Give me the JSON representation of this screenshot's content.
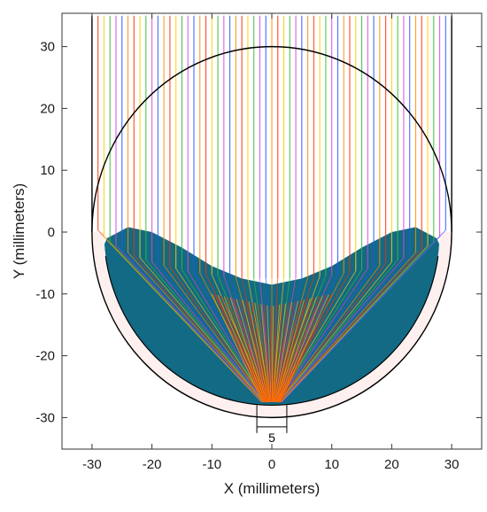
{
  "chart_data": {
    "type": "diagram",
    "xlabel": "X (millimeters)",
    "ylabel": "Y (millimeters)",
    "xlim": [
      -35,
      35
    ],
    "ylim": [
      -35,
      35
    ],
    "x_ticks": [
      -30,
      -20,
      -10,
      0,
      10,
      20,
      30
    ],
    "y_ticks": [
      30,
      20,
      10,
      0,
      -10,
      -20,
      -30
    ],
    "x_tick_labels": [
      "-30",
      "-20",
      "-10",
      "0",
      "10",
      "20",
      "30"
    ],
    "y_tick_labels": [
      "30",
      "20",
      "10",
      "0",
      "-10",
      "-20",
      "-30"
    ],
    "grid": false,
    "mirror": {
      "cx": 0,
      "cy": 0,
      "inner_radius": 28,
      "outer_radius": 30
    },
    "aperture": {
      "x_min": -2.5,
      "x_max": 2.5,
      "y": -31.5,
      "label": "5"
    },
    "rays": {
      "x_min": -29,
      "x_max": 29,
      "count": 59,
      "y_start": 35
    },
    "colors": {
      "fill": "#126a84",
      "mirror_shell": "#fdf0ef",
      "outline": "#000000",
      "rays": [
        "#ff2a00",
        "#ffcc00",
        "#33bb33",
        "#e040e0",
        "#2255ff",
        "#ff8800"
      ]
    }
  }
}
